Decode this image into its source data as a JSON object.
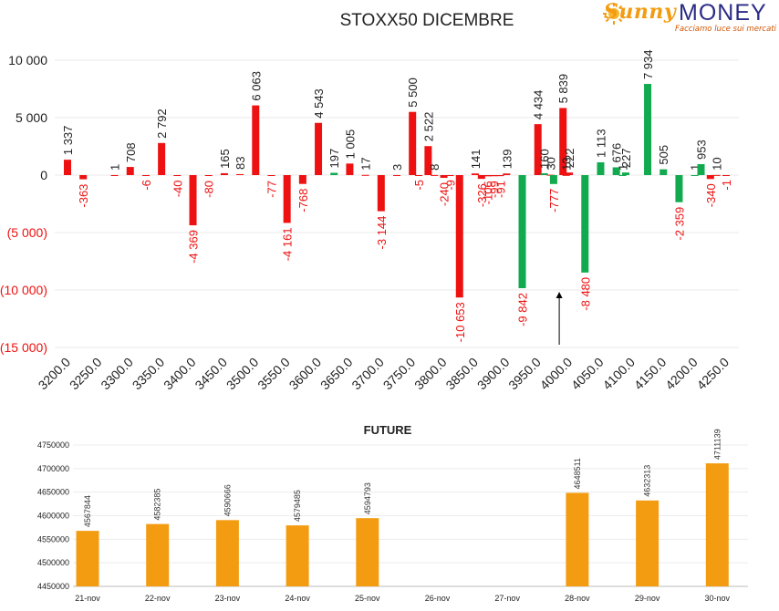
{
  "logo": {
    "brand_part1": "Sunny",
    "brand_part2": "MONEY",
    "tagline": "Facciamo luce sui mercati"
  },
  "colors": {
    "negative": "#ee1111",
    "green": "#11aa4e",
    "future_bar": "#f39c12"
  },
  "chart_data": [
    {
      "type": "bar",
      "title": "STOXX50 DICEMBRE",
      "ylim": [
        -15000,
        10000
      ],
      "y_ticks": [
        10000,
        5000,
        0,
        -5000,
        -10000,
        -15000
      ],
      "y_tick_labels": [
        "10 000",
        "5 000",
        "0",
        "(5 000)",
        "(10 000)",
        "(15 000)"
      ],
      "categories": [
        "3200.0",
        "3250.0",
        "3300.0",
        "3350.0",
        "3400.0",
        "3450.0",
        "3500.0",
        "3550.0",
        "3600.0",
        "3650.0",
        "3700.0",
        "3750.0",
        "3800.0",
        "3850.0",
        "3900.0",
        "3950.0",
        "4000.0",
        "4050.0",
        "4100.0",
        "4150.0",
        "4200.0",
        "4250.0"
      ],
      "bars": [
        {
          "x": 3200,
          "value": 1337,
          "label": "1 337",
          "color": "red"
        },
        {
          "x": 3225,
          "value": -363,
          "label": "-363",
          "color": "red"
        },
        {
          "x": 3275,
          "value": 1,
          "label": "1",
          "color": "red"
        },
        {
          "x": 3300,
          "value": 708,
          "label": "708",
          "color": "red"
        },
        {
          "x": 3325,
          "value": -6,
          "label": "-6",
          "color": "red"
        },
        {
          "x": 3350,
          "value": 2792,
          "label": "2 792",
          "color": "red"
        },
        {
          "x": 3375,
          "value": -40,
          "label": "-40",
          "color": "red"
        },
        {
          "x": 3400,
          "value": -4369,
          "label": "-4 369",
          "color": "red"
        },
        {
          "x": 3425,
          "value": -80,
          "label": "-80",
          "color": "red"
        },
        {
          "x": 3450,
          "value": 165,
          "label": "165",
          "color": "red"
        },
        {
          "x": 3475,
          "value": 83,
          "label": "83",
          "color": "red"
        },
        {
          "x": 3500,
          "value": 6063,
          "label": "6 063",
          "color": "red"
        },
        {
          "x": 3525,
          "value": -77,
          "label": "-77",
          "color": "red"
        },
        {
          "x": 3550,
          "value": -4161,
          "label": "-4 161",
          "color": "red"
        },
        {
          "x": 3575,
          "value": -768,
          "label": "-768",
          "color": "red"
        },
        {
          "x": 3600,
          "value": 4543,
          "label": "4 543",
          "color": "red"
        },
        {
          "x": 3625,
          "value": 197,
          "label": "197",
          "color": "green"
        },
        {
          "x": 3650,
          "value": 1005,
          "label": "1 005",
          "color": "red"
        },
        {
          "x": 3675,
          "value": 17,
          "label": "17",
          "color": "red"
        },
        {
          "x": 3700,
          "value": -3144,
          "label": "-3 144",
          "color": "red"
        },
        {
          "x": 3725,
          "value": 3,
          "label": "3",
          "color": "red"
        },
        {
          "x": 3750,
          "value": 5500,
          "label": "5 500",
          "color": "red"
        },
        {
          "x": 3760,
          "value": -5,
          "label": "-5",
          "color": "red"
        },
        {
          "x": 3775,
          "value": 2522,
          "label": "2 522",
          "color": "red"
        },
        {
          "x": 3785,
          "value": 8,
          "label": "8",
          "color": "red"
        },
        {
          "x": 3800,
          "value": -240,
          "label": "-240",
          "color": "red"
        },
        {
          "x": 3810,
          "value": -9,
          "label": "-9",
          "color": "red"
        },
        {
          "x": 3825,
          "value": -10653,
          "label": "-10 653",
          "color": "red"
        },
        {
          "x": 3850,
          "value": 141,
          "label": "141",
          "color": "red"
        },
        {
          "x": 3860,
          "value": -326,
          "label": "-326",
          "color": "red"
        },
        {
          "x": 3870,
          "value": -106,
          "label": "-106",
          "color": "red"
        },
        {
          "x": 3880,
          "value": -99,
          "label": "-99",
          "color": "red"
        },
        {
          "x": 3890,
          "value": -91,
          "label": "-91",
          "color": "red"
        },
        {
          "x": 3900,
          "value": 139,
          "label": "139",
          "color": "red"
        },
        {
          "x": 3925,
          "value": -9842,
          "label": "-9 842",
          "color": "green"
        },
        {
          "x": 3950,
          "value": 4434,
          "label": "4 434",
          "color": "red"
        },
        {
          "x": 3960,
          "value": 160,
          "label": "160",
          "color": "green"
        },
        {
          "x": 3970,
          "value": 30,
          "label": "30",
          "color": "red"
        },
        {
          "x": 3975,
          "value": -777,
          "label": "-777",
          "color": "green"
        },
        {
          "x": 3990,
          "value": 5839,
          "label": "5 839",
          "color": "red"
        },
        {
          "x": 3995,
          "value": 13,
          "label": "13",
          "color": "red"
        },
        {
          "x": 4000,
          "value": 222,
          "label": "222",
          "color": "red"
        },
        {
          "x": 4025,
          "value": -8480,
          "label": "-8 480",
          "color": "green"
        },
        {
          "x": 4050,
          "value": 1113,
          "label": "1 113",
          "color": "green"
        },
        {
          "x": 4075,
          "value": 676,
          "label": "676",
          "color": "green"
        },
        {
          "x": 4085,
          "value": 1,
          "label": "1",
          "color": "green"
        },
        {
          "x": 4090,
          "value": 227,
          "label": "227",
          "color": "green"
        },
        {
          "x": 4125,
          "value": 7934,
          "label": "7 934",
          "color": "green"
        },
        {
          "x": 4150,
          "value": 505,
          "label": "505",
          "color": "green"
        },
        {
          "x": 4175,
          "value": -2359,
          "label": "-2 359",
          "color": "green"
        },
        {
          "x": 4200,
          "value": 1,
          "label": "1",
          "color": "green"
        },
        {
          "x": 4210,
          "value": 953,
          "label": "953",
          "color": "green"
        },
        {
          "x": 4225,
          "value": -340,
          "label": "-340",
          "color": "red"
        },
        {
          "x": 4235,
          "value": 10,
          "label": "10",
          "color": "red"
        },
        {
          "x": 4250,
          "value": -1,
          "label": "-1",
          "color": "red"
        }
      ],
      "annotation": {
        "type": "arrow",
        "x": 4000,
        "from_value": -15000,
        "to_value": -10000
      }
    },
    {
      "type": "bar",
      "title": "FUTURE",
      "ylim": [
        4450000,
        4750000
      ],
      "y_ticks": [
        4450000,
        4500000,
        4550000,
        4600000,
        4650000,
        4700000,
        4750000
      ],
      "y_tick_labels": [
        "4450000",
        "4500000",
        "4550000",
        "4600000",
        "4650000",
        "4700000",
        "4750000"
      ],
      "categories": [
        "21-nov",
        "22-nov",
        "23-nov",
        "24-nov",
        "25-nov",
        "26-nov",
        "27-nov",
        "28-nov",
        "29-nov",
        "30-nov"
      ],
      "values": [
        4567844,
        4582385,
        4590666,
        4579485,
        4594793,
        null,
        null,
        4648511,
        4632313,
        4711139
      ],
      "value_labels": [
        "4567844",
        "4582385",
        "4590666",
        "4579485",
        "4594793",
        "",
        "",
        "4648511",
        "4632313",
        "4711139"
      ]
    }
  ]
}
